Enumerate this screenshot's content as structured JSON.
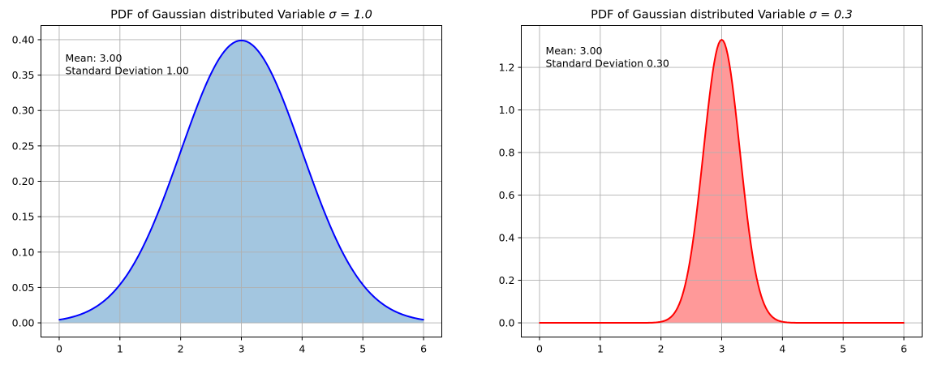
{
  "chart_data": [
    {
      "type": "area",
      "title": "PDF of Gaussian distributed Variable σ = 1.0",
      "title_main": "PDF of Gaussian distributed Variable ",
      "title_math": "σ = 1.0",
      "xlabel": "",
      "ylabel": "",
      "xlim": [
        -0.3,
        6.3
      ],
      "ylim": [
        -0.02,
        0.42
      ],
      "xticks": [
        0,
        1,
        2,
        3,
        4,
        5,
        6
      ],
      "xtick_labels": [
        "0",
        "1",
        "2",
        "3",
        "4",
        "5",
        "6"
      ],
      "yticks": [
        0.0,
        0.05,
        0.1,
        0.15,
        0.2,
        0.25,
        0.3,
        0.35,
        0.4
      ],
      "ytick_labels": [
        "0.00",
        "0.05",
        "0.10",
        "0.15",
        "0.20",
        "0.25",
        "0.30",
        "0.35",
        "0.40"
      ],
      "grid": true,
      "mean": 3.0,
      "std": 1.0,
      "annotation": [
        "Mean: 3.00",
        "Standard Deviation 1.00"
      ],
      "line_color": "#0000ff",
      "fill_color": "#a3c6e0",
      "x": [
        0,
        0.25,
        0.5,
        0.75,
        1,
        1.25,
        1.5,
        1.75,
        2,
        2.25,
        2.5,
        2.75,
        3,
        3.25,
        3.5,
        3.75,
        4,
        4.25,
        4.5,
        4.75,
        5,
        5.25,
        5.5,
        5.75,
        6
      ],
      "series": [
        {
          "values": [
            0.0044,
            0.0091,
            0.0175,
            0.0317,
            0.054,
            0.0863,
            0.1295,
            0.1826,
            0.242,
            0.3011,
            0.3521,
            0.3867,
            0.3989,
            0.3867,
            0.3521,
            0.3011,
            0.242,
            0.1826,
            0.1295,
            0.0863,
            0.054,
            0.0317,
            0.0175,
            0.0091,
            0.0044
          ]
        }
      ]
    },
    {
      "type": "area",
      "title": "PDF of Gaussian distributed Variable σ = 0.3",
      "title_main": "PDF of Gaussian distributed Variable ",
      "title_math": "σ = 0.3",
      "xlabel": "",
      "ylabel": "",
      "xlim": [
        -0.3,
        6.3
      ],
      "ylim": [
        -0.0665,
        1.3965
      ],
      "xticks": [
        0,
        1,
        2,
        3,
        4,
        5,
        6
      ],
      "xtick_labels": [
        "0",
        "1",
        "2",
        "3",
        "4",
        "5",
        "6"
      ],
      "yticks": [
        0.0,
        0.2,
        0.4,
        0.6,
        0.8,
        1.0,
        1.2
      ],
      "ytick_labels": [
        "0.0",
        "0.2",
        "0.4",
        "0.6",
        "0.8",
        "1.0",
        "1.2"
      ],
      "grid": true,
      "mean": 3.0,
      "std": 0.3,
      "annotation": [
        "Mean: 3.00",
        "Standard Deviation 0.30"
      ],
      "line_color": "#ff0000",
      "fill_color": "#ff9999",
      "x": [
        0,
        1,
        1.5,
        1.8,
        2,
        2.2,
        2.4,
        2.5,
        2.6,
        2.7,
        2.8,
        2.9,
        3,
        3.1,
        3.2,
        3.3,
        3.4,
        3.5,
        3.6,
        3.8,
        4,
        4.2,
        4.5,
        5,
        6
      ],
      "series": [
        {
          "values": [
            0.0,
            0.0,
            0.0,
            0.0004,
            0.0051,
            0.0379,
            0.1799,
            0.3315,
            0.5467,
            0.8066,
            1.0648,
            1.2579,
            1.3298,
            1.2579,
            1.0648,
            0.8066,
            0.5467,
            0.3315,
            0.1799,
            0.0379,
            0.0051,
            0.0004,
            0.0,
            0.0,
            0.0
          ]
        }
      ]
    }
  ]
}
